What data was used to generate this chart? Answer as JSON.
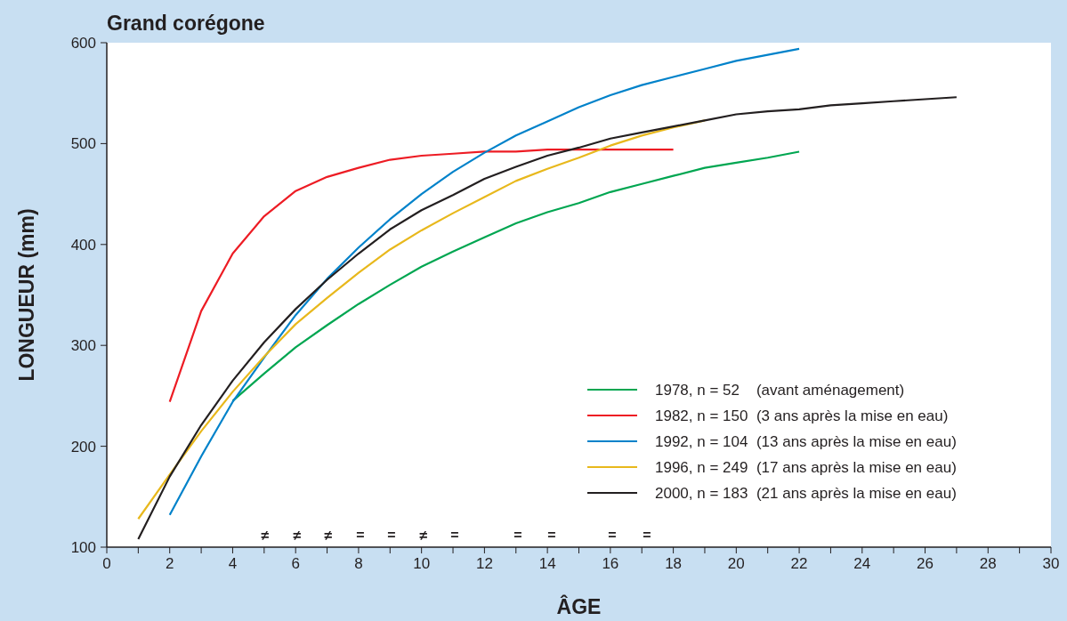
{
  "chart_data": {
    "type": "line",
    "title": "Grand corégone",
    "xlabel": "ÂGE",
    "ylabel": "LONGUEUR (mm)",
    "xlim": [
      0,
      30
    ],
    "ylim": [
      100,
      600
    ],
    "xticks": [
      0,
      {
        "value": 1,
        "label": null
      },
      2,
      {
        "value": 3,
        "label": null
      },
      4,
      {
        "value": 5,
        "label": null
      },
      6,
      {
        "value": 7,
        "label": null
      },
      8,
      {
        "value": 9,
        "label": null
      },
      10,
      {
        "value": 11,
        "label": null
      },
      12,
      {
        "value": 13,
        "label": null
      },
      14,
      {
        "value": 15,
        "label": null
      },
      16,
      {
        "value": 17,
        "label": null
      },
      18,
      {
        "value": 19,
        "label": null
      },
      20,
      {
        "value": 21,
        "label": null
      },
      22,
      {
        "value": 23,
        "label": null
      },
      24,
      {
        "value": 25,
        "label": null
      },
      26,
      {
        "value": 27,
        "label": null
      },
      28,
      {
        "value": 29,
        "label": null
      },
      30
    ],
    "yticks": [
      100,
      200,
      300,
      400,
      500,
      600
    ],
    "grid": false,
    "legend": "bottom right",
    "marker": "none",
    "line_style": "solid",
    "series": [
      {
        "name": "1978, n = 52    (avant aménagement)",
        "color": "#00a651",
        "x": [
          4,
          5,
          6,
          7,
          8,
          9,
          10,
          11,
          12,
          13,
          14,
          15,
          16,
          17,
          18,
          19,
          20,
          21,
          22
        ],
        "values": [
          245,
          272,
          298,
          320,
          341,
          360,
          378,
          393,
          407,
          421,
          432,
          441,
          452,
          460,
          468,
          476,
          481,
          486,
          492
        ]
      },
      {
        "name": "1982, n = 150  (3 ans après la mise en eau)",
        "color": "#ed1c24",
        "x": [
          2,
          3,
          4,
          5,
          6,
          7,
          8,
          9,
          10,
          11,
          12,
          13,
          14,
          15,
          16,
          17,
          18
        ],
        "values": [
          244,
          334,
          391,
          428,
          453,
          467,
          476,
          484,
          488,
          490,
          492,
          492,
          494,
          494,
          494,
          494,
          494
        ]
      },
      {
        "name": "1992, n = 104  (13 ans après la mise en eau)",
        "color": "#0082ca",
        "x": [
          2,
          3,
          4,
          5,
          6,
          7,
          8,
          9,
          10,
          11,
          12,
          13,
          14,
          15,
          16,
          17,
          18,
          19,
          20,
          21,
          22
        ],
        "values": [
          132,
          190,
          244,
          288,
          330,
          366,
          397,
          425,
          450,
          472,
          491,
          508,
          522,
          536,
          548,
          558,
          566,
          574,
          582,
          588,
          594
        ]
      },
      {
        "name": "1996, n = 249  (17 ans après la mise en eau)",
        "color": "#e8b81c",
        "x": [
          1,
          2,
          3,
          4,
          5,
          6,
          7,
          8,
          9,
          10,
          11,
          12,
          13,
          14,
          15,
          16,
          17,
          18,
          19
        ],
        "values": [
          128,
          172,
          215,
          254,
          289,
          321,
          347,
          372,
          395,
          414,
          431,
          447,
          463,
          475,
          486,
          498,
          508,
          516,
          523
        ]
      },
      {
        "name": "2000, n = 183  (21 ans après la mise en eau)",
        "color": "#231f20",
        "x": [
          1,
          2,
          3,
          4,
          5,
          6,
          7,
          8,
          9,
          10,
          11,
          12,
          13,
          14,
          15,
          16,
          17,
          18,
          19,
          20,
          21,
          22,
          23,
          24,
          25,
          26,
          27
        ],
        "values": [
          108,
          170,
          221,
          265,
          303,
          336,
          365,
          391,
          415,
          434,
          449,
          465,
          477,
          488,
          496,
          505,
          511,
          517,
          523,
          529,
          532,
          534,
          538,
          540,
          542,
          544,
          546
        ]
      }
    ],
    "annotations": [
      "≠",
      "≠",
      "≠",
      "=",
      "=",
      "≠",
      "=",
      "=",
      "=",
      "=",
      "="
    ]
  }
}
